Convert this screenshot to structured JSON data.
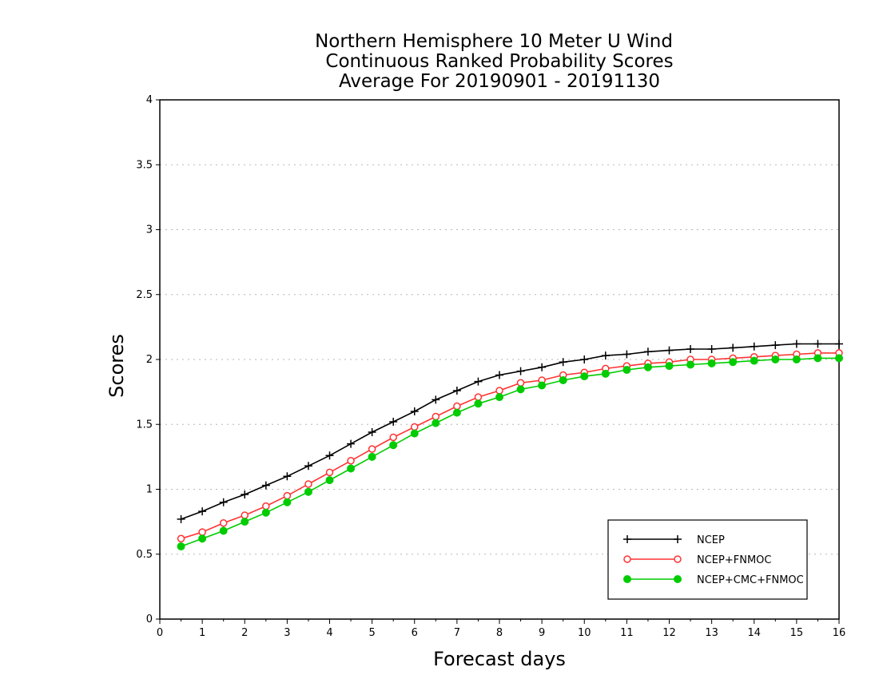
{
  "chart_data": {
    "type": "line",
    "title": [
      "Northern Hemisphere 10 Meter U Wind",
      "Continuous Ranked Probability Scores",
      "Average For 20190901 - 20191130"
    ],
    "xlabel": "Forecast days",
    "ylabel": "Scores",
    "xlim": [
      0,
      16
    ],
    "ylim": [
      0,
      4
    ],
    "xticks": [
      "0",
      "1",
      "2",
      "3",
      "4",
      "5",
      "6",
      "7",
      "8",
      "9",
      "10",
      "11",
      "12",
      "13",
      "14",
      "15",
      "16"
    ],
    "yticks": [
      "0",
      "0.5",
      "1",
      "1.5",
      "2",
      "2.5",
      "3",
      "3.5",
      "4"
    ],
    "grid": true,
    "legend_position": "bottom-right",
    "x": [
      0.5,
      1,
      1.5,
      2,
      2.5,
      3,
      3.5,
      4,
      4.5,
      5,
      5.5,
      6,
      6.5,
      7,
      7.5,
      8,
      8.5,
      9,
      9.5,
      10,
      10.5,
      11,
      11.5,
      12,
      12.5,
      13,
      13.5,
      14,
      14.5,
      15,
      15.5,
      16
    ],
    "series": [
      {
        "name": "NCEP",
        "color": "#000000",
        "marker": "plus",
        "values": [
          0.77,
          0.83,
          0.9,
          0.96,
          1.03,
          1.1,
          1.18,
          1.26,
          1.35,
          1.44,
          1.52,
          1.6,
          1.69,
          1.76,
          1.83,
          1.88,
          1.91,
          1.94,
          1.98,
          2.0,
          2.03,
          2.04,
          2.06,
          2.07,
          2.08,
          2.08,
          2.09,
          2.1,
          2.11,
          2.12,
          2.12,
          2.12
        ]
      },
      {
        "name": "NCEP+FNMOC",
        "color": "#ff3333",
        "marker": "open-circle",
        "values": [
          0.62,
          0.67,
          0.74,
          0.8,
          0.87,
          0.95,
          1.04,
          1.13,
          1.22,
          1.31,
          1.4,
          1.48,
          1.56,
          1.64,
          1.71,
          1.76,
          1.82,
          1.84,
          1.88,
          1.9,
          1.93,
          1.95,
          1.97,
          1.98,
          2.0,
          2.0,
          2.01,
          2.02,
          2.03,
          2.04,
          2.05,
          2.05
        ]
      },
      {
        "name": "NCEP+CMC+FNMOC",
        "color": "#00cc00",
        "marker": "filled-circle",
        "values": [
          0.56,
          0.62,
          0.68,
          0.75,
          0.82,
          0.9,
          0.98,
          1.07,
          1.16,
          1.25,
          1.34,
          1.43,
          1.51,
          1.59,
          1.66,
          1.71,
          1.77,
          1.8,
          1.84,
          1.87,
          1.89,
          1.92,
          1.94,
          1.95,
          1.96,
          1.97,
          1.98,
          1.99,
          2.0,
          2.0,
          2.01,
          2.01
        ]
      }
    ]
  }
}
